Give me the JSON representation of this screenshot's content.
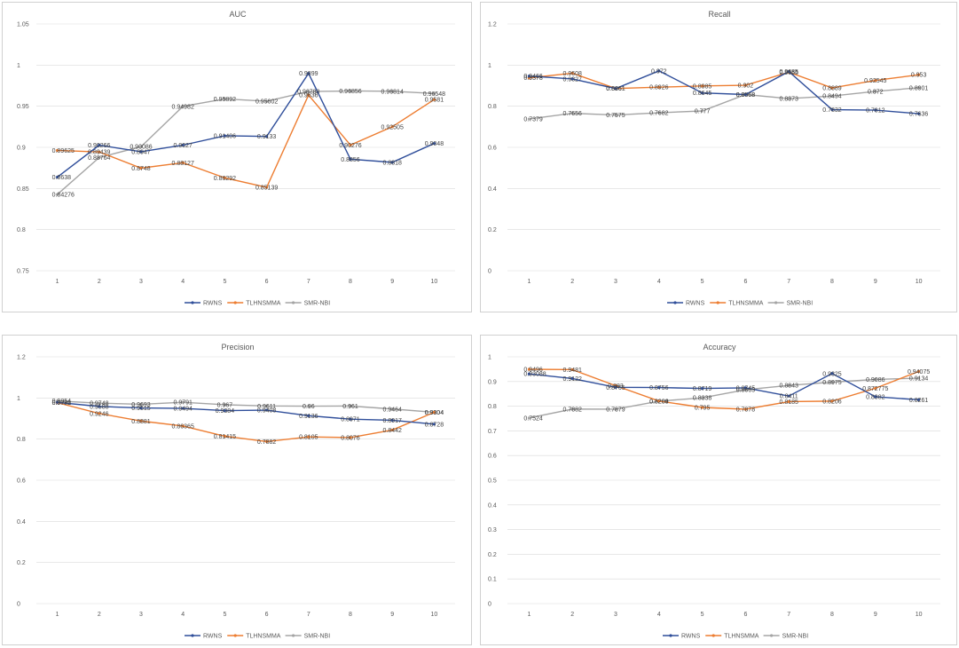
{
  "colors": {
    "RWNS": "#2F4E9A",
    "TLHNSMMA": "#ED7D31",
    "SMR-NBI": "#A5A5A5",
    "grid": "#D9D9D9",
    "text": "#595959"
  },
  "chart_data": [
    {
      "type": "line",
      "title": "AUC",
      "categories": [
        "1",
        "2",
        "3",
        "4",
        "5",
        "6",
        "7",
        "8",
        "9",
        "10"
      ],
      "ylim": [
        0.75,
        1.05
      ],
      "yticks": [
        "0.75",
        "0.8",
        "0.85",
        "0.9",
        "0.95",
        "1",
        "1.05"
      ],
      "legend": "bottom",
      "series": [
        {
          "name": "RWNS",
          "values": [
            0.8638,
            0.90266,
            0.8947,
            0.9027,
            0.91406,
            0.9133,
            0.9899,
            0.8856,
            0.8818,
            0.9048
          ],
          "labels": [
            "0.8638",
            "0.90266",
            "0.8947",
            "0.9027",
            "0.91406",
            "0.9133",
            "0.9899",
            "0.8856",
            "0.8818",
            "0.9048"
          ]
        },
        {
          "name": "TLHNSMMA",
          "values": [
            0.89625,
            0.89439,
            0.8748,
            0.88127,
            0.86292,
            0.85139,
            0.9636,
            0.90276,
            0.92505,
            0.9581
          ],
          "labels": [
            "0.89625",
            "0.89439",
            "0.8748",
            "0.88127",
            "0.86292",
            "0.85139",
            "0.9636",
            "0.90276",
            "0.92505",
            "0.9581"
          ]
        },
        {
          "name": "SMR-NBI",
          "values": [
            0.84276,
            0.88764,
            0.90086,
            0.94982,
            0.95892,
            0.95602,
            0.96788,
            0.96856,
            0.96814,
            0.96548
          ],
          "labels": [
            "0.84276",
            "0.88764",
            "0.90086",
            "0.94982",
            "0.95892",
            "0.95602",
            "0.96788",
            "0.96856",
            "0.96814",
            "0.96548"
          ]
        }
      ]
    },
    {
      "type": "line",
      "title": "Recall",
      "categories": [
        "1",
        "2",
        "3",
        "4",
        "5",
        "6",
        "7",
        "8",
        "9",
        "10"
      ],
      "ylim": [
        0,
        1.2
      ],
      "yticks": [
        "0",
        "0.2",
        "0.4",
        "0.6",
        "0.8",
        "1",
        "1.2"
      ],
      "legend": "bottom",
      "series": [
        {
          "name": "RWNS",
          "values": [
            0.9466,
            0.9327,
            0.8861,
            0.972,
            0.8645,
            0.8568,
            0.9685,
            0.7832,
            0.7812,
            0.7636
          ],
          "labels": [
            "0.9466",
            "0.9327",
            "0.8861",
            "0.972",
            "0.8645",
            "0.8568",
            "0.9685",
            "0.7832",
            "0.7812",
            "0.7636"
          ]
        },
        {
          "name": "TLHNSMMA",
          "values": [
            0.9378,
            0.9608,
            0.8861,
            0.8926,
            0.8985,
            0.902,
            0.9655,
            0.8889,
            0.92545,
            0.953
          ],
          "labels": [
            "0.9378",
            "0.9608",
            "0.8861",
            "0.8926",
            "0.8985",
            "0.902",
            "0.9655",
            "0.8889",
            "0.92545",
            "0.953"
          ]
        },
        {
          "name": "SMR-NBI",
          "values": [
            0.7379,
            0.7656,
            0.7575,
            0.7682,
            0.777,
            0.8568,
            0.8373,
            0.8494,
            0.872,
            0.8901
          ],
          "labels": [
            "0.7379",
            "0.7656",
            "0.7575",
            "0.7682",
            "0.777",
            "0.8568",
            "0.8373",
            "0.8494",
            "0.872",
            "0.8901"
          ]
        }
      ]
    },
    {
      "type": "line",
      "title": "Precision",
      "categories": [
        "1",
        "2",
        "3",
        "4",
        "5",
        "6",
        "7",
        "8",
        "9",
        "10"
      ],
      "ylim": [
        0,
        1.2
      ],
      "yticks": [
        "0",
        "0.2",
        "0.4",
        "0.6",
        "0.8",
        "1",
        "1.2"
      ],
      "legend": "bottom",
      "series": [
        {
          "name": "RWNS",
          "values": [
            0.9786,
            0.9588,
            0.9515,
            0.9494,
            0.9384,
            0.9408,
            0.9136,
            0.8971,
            0.8917,
            0.8728
          ],
          "labels": [
            "0.9786",
            "0.9588",
            "0.9515",
            "0.9494",
            "0.9384",
            "0.9408",
            "0.9136",
            "0.8971",
            "0.8917",
            "0.8728"
          ]
        },
        {
          "name": "TLHNSMMA",
          "values": [
            0.9772,
            0.9246,
            0.8881,
            0.86365,
            0.81415,
            0.7882,
            0.8105,
            0.8076,
            0.8442,
            0.9304
          ],
          "labels": [
            "0.9772",
            "0.9246",
            "0.8881",
            "0.86365",
            "0.81415",
            "0.7882",
            "0.8105",
            "0.8076",
            "0.8442",
            "0.9304"
          ]
        },
        {
          "name": "SMR-NBI",
          "values": [
            0.9854,
            0.9748,
            0.9693,
            0.9791,
            0.967,
            0.9611,
            0.96,
            0.961,
            0.9464,
            0.9304
          ],
          "labels": [
            "0.9854",
            "0.9748",
            "0.9693",
            "0.9791",
            "0.967",
            "0.9611",
            "0.96",
            "0.961",
            "0.9464",
            "0.9304"
          ]
        }
      ]
    },
    {
      "type": "line",
      "title": "Accuracy",
      "categories": [
        "1",
        "2",
        "3",
        "4",
        "5",
        "6",
        "7",
        "8",
        "9",
        "10"
      ],
      "ylim": [
        0,
        1
      ],
      "yticks": [
        "0",
        "0.1",
        "0.2",
        "0.3",
        "0.4",
        "0.5",
        "0.6",
        "0.7",
        "0.8",
        "0.9",
        "1"
      ],
      "legend": "bottom",
      "series": [
        {
          "name": "RWNS",
          "values": [
            0.93088,
            0.9122,
            0.8765,
            0.8756,
            0.8719,
            0.8745,
            0.8411,
            0.9325,
            0.8382,
            0.8261
          ],
          "labels": [
            "0.93088",
            "0.9122",
            "0.8765",
            "0.8756",
            "0.8719",
            "0.8745",
            "0.8411",
            "0.9325",
            "0.8382",
            "0.8261"
          ]
        },
        {
          "name": "TLHNSMMA",
          "values": [
            0.9496,
            0.9481,
            0.883,
            0.8209,
            0.795,
            0.7878,
            0.8185,
            0.8206,
            0.872775,
            0.94075
          ],
          "labels": [
            "0.9496",
            "0.9481",
            "0.883",
            "0.8209",
            "0.795",
            "0.7878",
            "0.8185",
            "0.8206",
            "0.872775",
            "0.94075"
          ]
        },
        {
          "name": "SMR-NBI",
          "values": [
            0.7524,
            0.7882,
            0.7879,
            0.8204,
            0.8338,
            0.8665,
            0.8843,
            0.8975,
            0.9086,
            0.9134
          ],
          "labels": [
            "0.7524",
            "0.7882",
            "0.7879",
            "0.8204",
            "0.8338",
            "0.8665",
            "0.8843",
            "0.8975",
            "0.9086",
            "0.9134"
          ]
        }
      ]
    }
  ]
}
